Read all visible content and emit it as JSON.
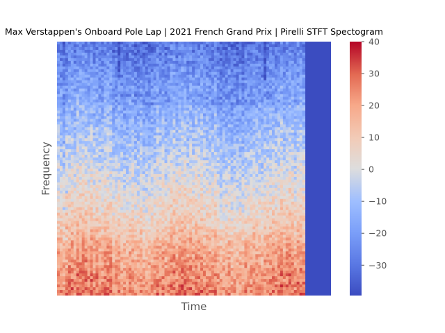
{
  "chart_data": {
    "type": "heatmap",
    "title": "Max Verstappen's Onboard Pole Lap | 2021 French Grand Prix | Pirelli STFT Spectogram",
    "xlabel": "Time",
    "ylabel": "Frequency",
    "colorbar": {
      "colormap": "coolwarm",
      "range": [
        -39.5,
        40
      ],
      "ticks": [
        40,
        30,
        20,
        10,
        0,
        -10,
        -20,
        -30
      ],
      "tick_labels": [
        "40",
        "30",
        "20",
        "10",
        "0",
        "−10",
        "−20",
        "−30"
      ],
      "colors": {
        "min": "#3b4cc0",
        "low": "#7396f5",
        "mid": "#dddddd",
        "high": "#f08a6c",
        "max": "#b40426"
      }
    },
    "x_ticks": "none",
    "y_ticks": "none",
    "audio_fraction_of_time_axis": 0.905,
    "frequency_profile_db": [
      {
        "freq_fraction": 0.0,
        "level_db": 26
      },
      {
        "freq_fraction": 0.1,
        "level_db": 22
      },
      {
        "freq_fraction": 0.2,
        "level_db": 17
      },
      {
        "freq_fraction": 0.3,
        "level_db": 8
      },
      {
        "freq_fraction": 0.45,
        "level_db": 0
      },
      {
        "freq_fraction": 0.6,
        "level_db": -8
      },
      {
        "freq_fraction": 0.75,
        "level_db": -16
      },
      {
        "freq_fraction": 0.9,
        "level_db": -24
      },
      {
        "freq_fraction": 1.0,
        "level_db": -30
      }
    ],
    "padding_level_db": -39.5
  }
}
